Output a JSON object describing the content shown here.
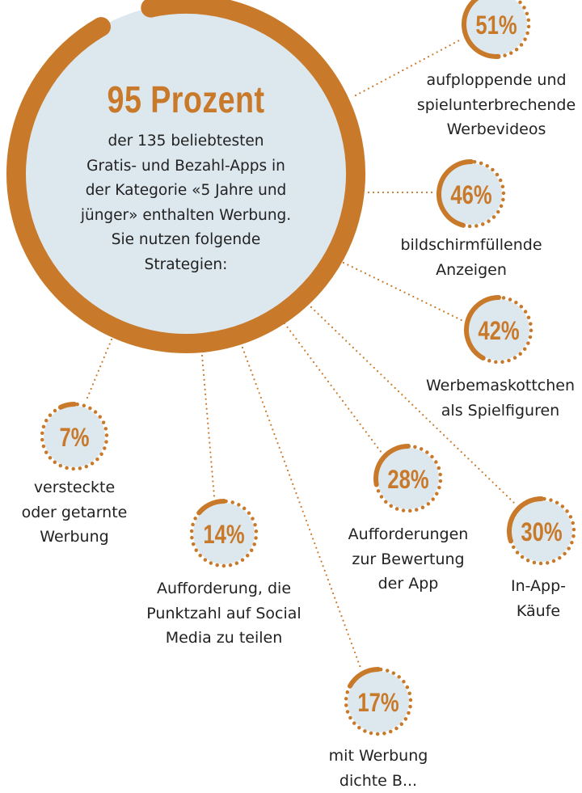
{
  "colors": {
    "accent": "#c8792a",
    "circle_fill": "#dde8ee",
    "text": "#222222"
  },
  "main": {
    "headline": "95 Prozent",
    "headline_value": 95,
    "body_lines": [
      "der 135 beliebtesten",
      "Gratis- und Bezahl-Apps in",
      "der Kategorie «5 Jahre und",
      "jünger» enthalten Werbung.",
      "Sie nutzen folgende",
      "Strategien:"
    ]
  },
  "chart_data": {
    "type": "pie",
    "categories": [
      "aufploppende und spielunterbrechende Werbevideos",
      "bildschirmfüllende Anzeigen",
      "Werbemaskottchen als Spielfiguren",
      "versteckte oder getarnte Werbung",
      "Aufforderung, die Punktzahl auf Social Media zu teilen",
      "Aufforderungen zur Bewertung der App",
      "In-App-Käufe",
      "mit Werbung dichte B..."
    ],
    "values": [
      51,
      46,
      42,
      7,
      14,
      28,
      30,
      17
    ],
    "items": [
      {
        "value": 51,
        "value_label": "51%",
        "label_lines": [
          "aufploppende und",
          "spielunterbrechende",
          "Werbevideos"
        ]
      },
      {
        "value": 46,
        "value_label": "46%",
        "label_lines": [
          "bildschirmfüllende",
          "Anzeigen"
        ]
      },
      {
        "value": 42,
        "value_label": "42%",
        "label_lines": [
          "Werbemaskottchen",
          "als Spielfiguren"
        ]
      },
      {
        "value": 7,
        "value_label": "7%",
        "label_lines": [
          "versteckte",
          "oder getarnte",
          "Werbung"
        ]
      },
      {
        "value": 14,
        "value_label": "14%",
        "label_lines": [
          "Aufforderung, die",
          "Punktzahl auf Social",
          "Media zu teilen"
        ]
      },
      {
        "value": 28,
        "value_label": "28%",
        "label_lines": [
          "Aufforderungen",
          "zur Bewertung",
          "der App"
        ]
      },
      {
        "value": 30,
        "value_label": "30%",
        "label_lines": [
          "In-App-",
          "Käufe"
        ]
      },
      {
        "value": 17,
        "value_label": "17%",
        "label_lines": [
          "mit Werbung",
          "dichte B..."
        ]
      }
    ]
  }
}
